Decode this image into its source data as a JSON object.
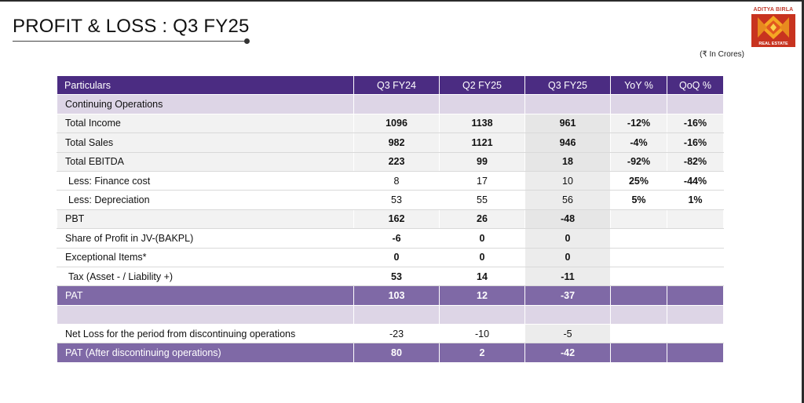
{
  "title": "PROFIT & LOSS : Q3 FY25",
  "logo": {
    "top_text": "ADITYA BIRLA",
    "bottom_text": "REAL ESTATE",
    "colors": {
      "primary": "#c8331f",
      "accent": "#f5a623"
    }
  },
  "unit_note": "(₹ In Crores)",
  "colors": {
    "header": "#4b2c82",
    "section": "#ddd5e6",
    "pat_row": "#7f69a6"
  },
  "table": {
    "headers": [
      "Particulars",
      "Q3 FY24",
      "Q2 FY25",
      "Q3 FY25",
      "YoY %",
      "QoQ %"
    ],
    "section_label": "Continuing Operations",
    "rows": [
      {
        "label": "Total Income",
        "values": [
          "1096",
          "1138",
          "961",
          "-12%",
          "-16%"
        ]
      },
      {
        "label": "Total Sales",
        "values": [
          "982",
          "1121",
          "946",
          "-4%",
          "-16%"
        ]
      },
      {
        "label": "Total EBITDA",
        "values": [
          "223",
          "99",
          "18",
          "-92%",
          "-82%"
        ]
      },
      {
        "label": "Less: Finance cost",
        "values": [
          "8",
          "17",
          "10",
          "25%",
          "-44%"
        ]
      },
      {
        "label": "Less: Depreciation",
        "values": [
          "53",
          "55",
          "56",
          "5%",
          "1%"
        ]
      },
      {
        "label": "PBT",
        "values": [
          "162",
          "26",
          "-48",
          "",
          ""
        ]
      },
      {
        "label": "Share of Profit in JV-(BAKPL)",
        "values": [
          "-6",
          "0",
          "0",
          "",
          ""
        ]
      },
      {
        "label": "Exceptional Items*",
        "values": [
          "0",
          "0",
          "0",
          "",
          ""
        ]
      },
      {
        "label": "Tax (Asset - / Liability +)",
        "values": [
          "53",
          "14",
          "-11",
          "",
          ""
        ]
      }
    ],
    "pat": {
      "label": "PAT",
      "values": [
        "103",
        "12",
        "-37",
        "",
        ""
      ]
    },
    "discontinued": {
      "label": "Net Loss for the period from discontinuing operations",
      "values": [
        "-23",
        "-10",
        "-5",
        "",
        ""
      ]
    },
    "pat_after": {
      "label": "PAT (After discontinuing operations)",
      "values": [
        "80",
        "2",
        "-42",
        "",
        ""
      ]
    }
  }
}
